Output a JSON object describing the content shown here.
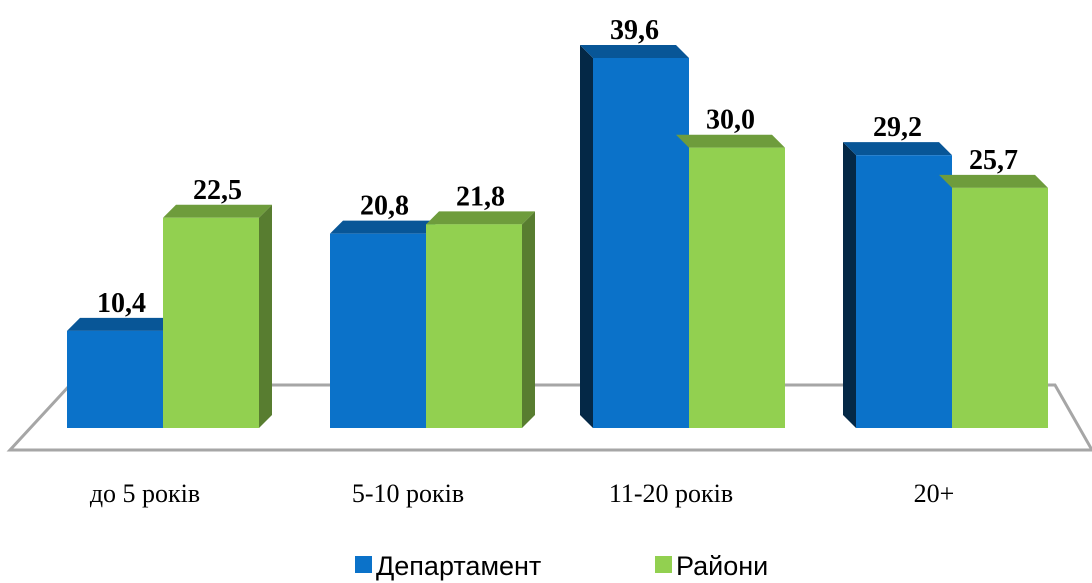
{
  "chart_data": {
    "type": "bar3d",
    "categories": [
      "до 5 років",
      "5-10 років",
      "11-20 років",
      "20+"
    ],
    "series": [
      {
        "name": "Департамент",
        "color": "#0b72c9",
        "values": [
          10.4,
          20.8,
          39.6,
          29.2
        ],
        "value_labels": [
          "10,4",
          "20,8",
          "39,6",
          "29,2"
        ]
      },
      {
        "name": "Райони",
        "color": "#92d050",
        "values": [
          22.5,
          21.8,
          30.0,
          25.7
        ],
        "value_labels": [
          "22,5",
          "21,8",
          "30,0",
          "25,7"
        ]
      }
    ],
    "legend": "bottom"
  }
}
